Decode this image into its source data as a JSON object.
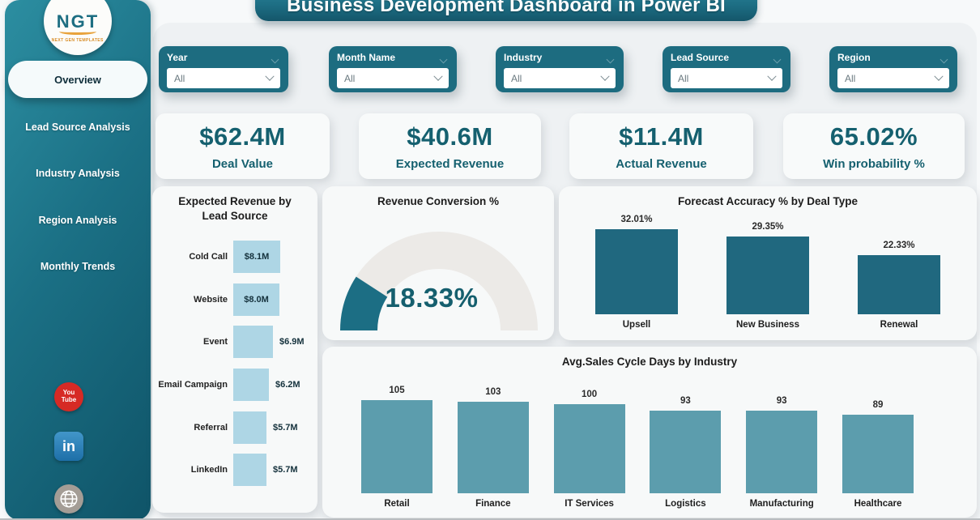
{
  "header": {
    "title": "Business Development Dashboard in Power BI"
  },
  "sidebar": {
    "logo_text": "NGT",
    "logo_subtext": "NEXT GEN TEMPLATES",
    "items": [
      {
        "label": "Overview",
        "active": true
      },
      {
        "label": "Lead Source Analysis",
        "active": false
      },
      {
        "label": "Industry Analysis",
        "active": false
      },
      {
        "label": "Region Analysis",
        "active": false
      },
      {
        "label": "Monthly Trends",
        "active": false
      }
    ],
    "social": {
      "youtube_line1": "You",
      "youtube_line2": "Tube",
      "linkedin": "in"
    }
  },
  "filters": [
    {
      "label": "Year",
      "value": "All"
    },
    {
      "label": "Month Name",
      "value": "All"
    },
    {
      "label": "Industry",
      "value": "All"
    },
    {
      "label": "Lead Source",
      "value": "All"
    },
    {
      "label": "Region",
      "value": "All"
    }
  ],
  "kpis": [
    {
      "value": "$62.4M",
      "label": "Deal Value"
    },
    {
      "value": "$40.6M",
      "label": "Expected Revenue"
    },
    {
      "value": "$11.4M",
      "label": "Actual Revenue"
    },
    {
      "value": "65.02%",
      "label": "Win probability %"
    }
  ],
  "chart_data": [
    {
      "type": "bar",
      "orientation": "horizontal",
      "title": "Expected Revenue by Lead Source",
      "categories": [
        "Cold Call",
        "Website",
        "Event",
        "Email Campaign",
        "Referral",
        "LinkedIn"
      ],
      "values": [
        8.1,
        8.0,
        6.9,
        6.2,
        5.7,
        5.7
      ],
      "labels": [
        "$8.1M",
        "$8.0M",
        "$6.9M",
        "$6.2M",
        "$5.7M",
        "$5.7M"
      ],
      "label_inside": [
        true,
        true,
        false,
        false,
        false,
        false
      ],
      "bar_color": "#aed6e5",
      "unit": "$M",
      "grid": false
    },
    {
      "type": "gauge",
      "title": "Revenue Conversion %",
      "value": 18.33,
      "label": "18.33%",
      "min": 0,
      "max": 100,
      "fill_color": "#1c6e84",
      "track_color": "#eceae7"
    },
    {
      "type": "bar",
      "orientation": "vertical",
      "title": "Forecast Accuracy % by Deal Type",
      "categories": [
        "Upsell",
        "New Business",
        "Renewal"
      ],
      "values": [
        32.01,
        29.35,
        22.33
      ],
      "labels": [
        "32.01%",
        "29.35%",
        "22.33%"
      ],
      "bar_color": "#20687f",
      "unit": "%",
      "grid": false
    },
    {
      "type": "bar",
      "orientation": "vertical",
      "title": "Avg.Sales Cycle Days by Industry",
      "categories": [
        "Retail",
        "Finance",
        "IT Services",
        "Logistics",
        "Manufacturing",
        "Healthcare"
      ],
      "values": [
        105,
        103,
        100,
        93,
        93,
        89
      ],
      "labels": [
        "105",
        "103",
        "100",
        "93",
        "93",
        "89"
      ],
      "bar_color": "#5c9dad",
      "unit": "days",
      "grid": false
    }
  ],
  "colors": {
    "accent_teal": "#1d6c80",
    "kpi_text": "#15606f",
    "light_bar": "#aed6e5",
    "mid_bar": "#5c9dad",
    "dark_bar": "#20687f"
  }
}
